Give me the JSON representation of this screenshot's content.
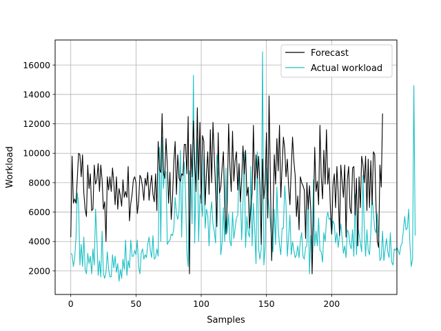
{
  "chart_data": {
    "type": "line",
    "title": "",
    "xlabel": "Samples",
    "ylabel": "Workload",
    "xlim": [
      -12,
      250
    ],
    "ylim": [
      400,
      17700
    ],
    "xticks": [
      0,
      50,
      100,
      150,
      200
    ],
    "yticks": [
      2000,
      4000,
      6000,
      8000,
      10000,
      12000,
      14000,
      16000
    ],
    "grid": true,
    "legend_position": "top-right",
    "series": [
      {
        "name": "Forecast",
        "color": "#000000",
        "values": [
          4300,
          9800,
          6600,
          6900,
          6600,
          8300,
          10000,
          9900,
          8400,
          9900,
          7300,
          6200,
          5700,
          9200,
          7600,
          8600,
          6100,
          6200,
          9200,
          7900,
          8200,
          9300,
          7400,
          9200,
          8200,
          6200,
          6700,
          4000,
          8400,
          7500,
          8400,
          7400,
          9000,
          8000,
          6500,
          8400,
          6200,
          7600,
          7100,
          6400,
          8200,
          7000,
          7400,
          7000,
          9100,
          5400,
          6600,
          7200,
          8200,
          8400,
          8000,
          5900,
          6700,
          8500,
          8300,
          7700,
          6800,
          8300,
          7800,
          8700,
          6800,
          7800,
          8500,
          7200,
          6700,
          8600,
          6100,
          10800,
          8900,
          8700,
          12700,
          8700,
          8300,
          11000,
          9200,
          6600,
          8700,
          5500,
          7000,
          9400,
          10800,
          7200,
          9900,
          8300,
          8100,
          8600,
          8500,
          10600,
          10600,
          8600,
          12500,
          1800,
          10600,
          8400,
          12200,
          9400,
          7400,
          13100,
          8200,
          12100,
          6600,
          11200,
          10800,
          6500,
          8600,
          10100,
          7200,
          11600,
          8000,
          12100,
          9800,
          7600,
          5000,
          11400,
          7300,
          7700,
          9000,
          10100,
          6500,
          4500,
          6900,
          12000,
          9100,
          7400,
          11500,
          8100,
          9500,
          10100,
          7500,
          9300,
          6700,
          8200,
          10500,
          8600,
          10200,
          7100,
          7700,
          4900,
          6200,
          7300,
          11900,
          7500,
          9900,
          8300,
          9800,
          7800,
          3800,
          9600,
          6900,
          8000,
          11400,
          5600,
          13900,
          8300,
          2700,
          5500,
          9900,
          7900,
          11000,
          8800,
          11900,
          7000,
          9100,
          11100,
          10300,
          8400,
          9600,
          7700,
          6500,
          8900,
          11100,
          9500,
          8500,
          5700,
          7100,
          4800,
          8400,
          8000,
          7800,
          7500,
          4200,
          8000,
          6200,
          7800,
          6100,
          1800,
          5700,
          10400,
          7400,
          8100,
          6500,
          11900,
          8400,
          6900,
          10200,
          7900,
          11600,
          7900,
          9000,
          6300,
          4500,
          7800,
          8600,
          6300,
          9100,
          7300,
          4400,
          9200,
          8100,
          7000,
          9200,
          4300,
          8200,
          9100,
          6300,
          5900,
          9000,
          9100,
          5800,
          8300,
          3700,
          8400,
          6300,
          9800,
          9200,
          8000,
          9800,
          6100,
          9600,
          6300,
          9500,
          6500,
          10100,
          9900,
          6400,
          4000,
          3600,
          9200,
          7700,
          12700
        ]
      },
      {
        "name": "Actual workload",
        "color": "#17bfc4",
        "values": [
          3200,
          3100,
          2300,
          2900,
          4300,
          7300,
          6500,
          2400,
          3800,
          2300,
          4300,
          2100,
          1800,
          3200,
          2500,
          3000,
          1800,
          3500,
          2400,
          6200,
          4200,
          1700,
          2700,
          1600,
          4700,
          1800,
          1500,
          1900,
          3300,
          2100,
          1600,
          1600,
          3100,
          2200,
          3000,
          1900,
          2500,
          1300,
          2100,
          1500,
          2800,
          2100,
          4100,
          1700,
          2700,
          2200,
          4100,
          3000,
          3000,
          3400,
          3100,
          4100,
          2300,
          1800,
          3200,
          3500,
          2800,
          3100,
          2900,
          3800,
          4300,
          3400,
          2900,
          4400,
          2800,
          2900,
          3500,
          3000,
          10400,
          4000,
          11100,
          7600,
          8800,
          8700,
          3800,
          4000,
          4100,
          4500,
          4400,
          4900,
          7000,
          5900,
          5500,
          6100,
          10200,
          4300,
          8300,
          9400,
          7200,
          3300,
          2300,
          8800,
          8400,
          5200,
          15300,
          3900,
          8200,
          11000,
          4000,
          7200,
          6800,
          5700,
          9900,
          4900,
          6200,
          5800,
          3700,
          5800,
          6700,
          5200,
          4700,
          3900,
          9900,
          8800,
          7800,
          3100,
          3900,
          6300,
          4000,
          9000,
          4600,
          5900,
          4000,
          3700,
          6000,
          4200,
          4900,
          5600,
          5800,
          8800,
          7200,
          4100,
          6600,
          10100,
          3600,
          5700,
          4600,
          4300,
          9100,
          3700,
          6600,
          4800,
          2500,
          10100,
          3500,
          2800,
          3500,
          16900,
          2400,
          3600,
          9000,
          7200,
          6300,
          5300,
          4000,
          3300,
          6200,
          3800,
          7700,
          4900,
          3800,
          3100,
          4900,
          4900,
          7800,
          6500,
          3000,
          4300,
          5800,
          3100,
          4000,
          3400,
          2900,
          3100,
          3700,
          2900,
          4100,
          4600,
          3000,
          2800,
          3600,
          3700,
          7100,
          1800,
          4400,
          3300,
          8200,
          3700,
          4700,
          3700,
          5600,
          3400,
          3300,
          2600,
          4600,
          4000,
          5500,
          6000,
          5500,
          5600,
          4500,
          5400,
          5200,
          3900,
          4600,
          3600,
          4400,
          5200,
          4200,
          3200,
          3700,
          2900,
          4800,
          4600,
          3800,
          3500,
          4800,
          3000,
          7200,
          3100,
          5000,
          4500,
          3900,
          3300,
          8500,
          4800,
          3000,
          4800,
          3400,
          3100,
          4600,
          7100,
          6000,
          4800,
          4600,
          5900,
          4200,
          2700,
          2900,
          4700,
          2700,
          3500,
          4200,
          3300,
          2900,
          4600,
          2600,
          2400,
          3500,
          3400,
          3600,
          3400,
          3100,
          3700,
          3900,
          4800,
          5700,
          4800,
          4900,
          6200,
          3800,
          2300,
          2800,
          14600,
          4400
        ]
      }
    ]
  }
}
